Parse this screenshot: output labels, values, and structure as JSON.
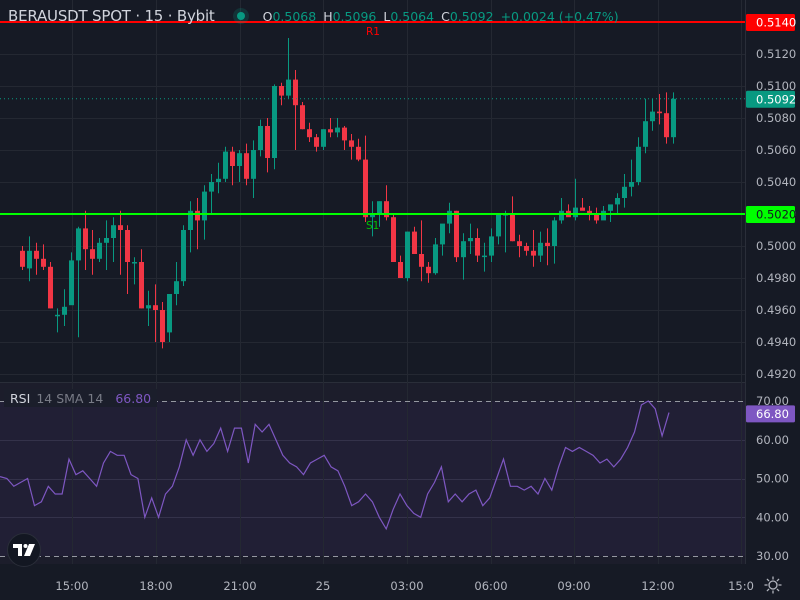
{
  "header": {
    "symbol": "BERAUSDT SPOT · 15 · Bybit",
    "status_dot_color": "#089981",
    "ohlc": {
      "o_label": "O",
      "o": "0.5068",
      "h_label": "H",
      "h": "0.5096",
      "l_label": "L",
      "l": "0.5064",
      "c_label": "C",
      "c": "0.5092",
      "change": "+0.0024 (+0.47%)"
    }
  },
  "rsi_legend": {
    "title": "RSI",
    "params": "14 SMA 14",
    "value": "66.80"
  },
  "colors": {
    "background": "#161a25",
    "grid": "#242832",
    "up": "#089981",
    "down": "#f23645",
    "resistance": "#ff0000",
    "support": "#00ff00",
    "rsi_line": "#7e57c2",
    "rsi_band": "#211f35"
  },
  "chart_data": [
    {
      "type": "candlestick",
      "title": "BERAUSDT SPOT · 15 · Bybit",
      "price_axis": {
        "ticks": [
          "0.5140",
          "0.5120",
          "0.5100",
          "0.5080",
          "0.5060",
          "0.5040",
          "0.5020",
          "0.5000",
          "0.4980",
          "0.4960",
          "0.4940",
          "0.4920"
        ],
        "range": [
          0.4915,
          0.5153
        ]
      },
      "time_axis": {
        "ticks": [
          "15:00",
          "18:00",
          "21:00",
          "25",
          "03:00",
          "06:00",
          "09:00",
          "12:00",
          "15:0"
        ]
      },
      "levels": [
        {
          "name": "R1",
          "price": 0.514,
          "label": "0.5140",
          "color": "#ff0000"
        },
        {
          "name": "S1",
          "price": 0.502,
          "label": "0.5020",
          "color": "#00ff00"
        }
      ],
      "last_price": {
        "price": 0.5092,
        "label": "0.5092",
        "color": "#089981"
      },
      "candles_ohlc": [
        [
          0.4997,
          0.5,
          0.4985,
          0.4987
        ],
        [
          0.4986,
          0.5006,
          0.4978,
          0.4997
        ],
        [
          0.4997,
          0.5002,
          0.4982,
          0.4992
        ],
        [
          0.4992,
          0.5001,
          0.4985,
          0.4987
        ],
        [
          0.4987,
          0.499,
          0.4961,
          0.4961
        ],
        [
          0.4957,
          0.4961,
          0.4946,
          0.4957
        ],
        [
          0.4957,
          0.4973,
          0.495,
          0.4962
        ],
        [
          0.4963,
          0.4996,
          0.4966,
          0.4991
        ],
        [
          0.4991,
          0.5012,
          0.4943,
          0.5011
        ],
        [
          0.5011,
          0.5022,
          0.4985,
          0.4998
        ],
        [
          0.4998,
          0.501,
          0.4982,
          0.4992
        ],
        [
          0.4992,
          0.5005,
          0.499,
          0.5002
        ],
        [
          0.5002,
          0.5016,
          0.4985,
          0.5005
        ],
        [
          0.5005,
          0.5018,
          0.499,
          0.5013
        ],
        [
          0.5013,
          0.5022,
          0.4982,
          0.501
        ],
        [
          0.501,
          0.5013,
          0.497,
          0.499
        ],
        [
          0.499,
          0.4993,
          0.4976,
          0.499
        ],
        [
          0.499,
          0.4998,
          0.4961,
          0.4961
        ],
        [
          0.4961,
          0.4972,
          0.495,
          0.4963
        ],
        [
          0.4963,
          0.4976,
          0.494,
          0.496
        ],
        [
          0.496,
          0.4965,
          0.4936,
          0.494
        ],
        [
          0.4946,
          0.497,
          0.494,
          0.497
        ],
        [
          0.497,
          0.499,
          0.4963,
          0.4978
        ],
        [
          0.4978,
          0.5013,
          0.4975,
          0.501
        ],
        [
          0.501,
          0.5028,
          0.4996,
          0.5022
        ],
        [
          0.5022,
          0.503,
          0.4998,
          0.5016
        ],
        [
          0.5016,
          0.5038,
          0.5004,
          0.5034
        ],
        [
          0.5034,
          0.5045,
          0.502,
          0.504
        ],
        [
          0.504,
          0.5052,
          0.5033,
          0.5042
        ],
        [
          0.5042,
          0.5062,
          0.504,
          0.5059
        ],
        [
          0.5059,
          0.5062,
          0.5038,
          0.505
        ],
        [
          0.505,
          0.506,
          0.504,
          0.5058
        ],
        [
          0.5058,
          0.5064,
          0.5038,
          0.5042
        ],
        [
          0.5042,
          0.5066,
          0.503,
          0.506
        ],
        [
          0.506,
          0.5079,
          0.5056,
          0.5075
        ],
        [
          0.5075,
          0.508,
          0.5046,
          0.5055
        ],
        [
          0.5055,
          0.5101,
          0.5048,
          0.51
        ],
        [
          0.51,
          0.5102,
          0.5088,
          0.5094
        ],
        [
          0.5094,
          0.513,
          0.5092,
          0.5104
        ],
        [
          0.5104,
          0.511,
          0.506,
          0.5088
        ],
        [
          0.5088,
          0.509,
          0.5073,
          0.5073
        ],
        [
          0.5073,
          0.5077,
          0.5065,
          0.5068
        ],
        [
          0.5068,
          0.507,
          0.5059,
          0.5062
        ],
        [
          0.5062,
          0.5073,
          0.506,
          0.5073
        ],
        [
          0.5073,
          0.508,
          0.5068,
          0.5071
        ],
        [
          0.5071,
          0.508,
          0.5068,
          0.5074
        ],
        [
          0.5074,
          0.5075,
          0.506,
          0.5066
        ],
        [
          0.5066,
          0.507,
          0.5054,
          0.5062
        ],
        [
          0.5062,
          0.5067,
          0.5053,
          0.5054
        ],
        [
          0.5054,
          0.5069,
          0.5015,
          0.5018
        ],
        [
          0.5018,
          0.5028,
          0.5006,
          0.502
        ],
        [
          0.502,
          0.5028,
          0.5012,
          0.5028
        ],
        [
          0.5028,
          0.5038,
          0.5016,
          0.5018
        ],
        [
          0.5018,
          0.502,
          0.4998,
          0.499
        ],
        [
          0.499,
          0.4994,
          0.498,
          0.498
        ],
        [
          0.498,
          0.5009,
          0.4978,
          0.5009
        ],
        [
          0.5009,
          0.5012,
          0.4995,
          0.4995
        ],
        [
          0.4995,
          0.5016,
          0.4978,
          0.4987
        ],
        [
          0.4987,
          0.499,
          0.4977,
          0.4983
        ],
        [
          0.4983,
          0.5005,
          0.4982,
          0.5001
        ],
        [
          0.5001,
          0.501,
          0.4994,
          0.5014
        ],
        [
          0.5014,
          0.5027,
          0.5008,
          0.5022
        ],
        [
          0.5022,
          0.5022,
          0.499,
          0.4993
        ],
        [
          0.4993,
          0.5008,
          0.4979,
          0.5003
        ],
        [
          0.5003,
          0.5014,
          0.4995,
          0.5005
        ],
        [
          0.5005,
          0.5011,
          0.499,
          0.4994
        ],
        [
          0.4994,
          0.5002,
          0.4984,
          0.4994
        ],
        [
          0.4994,
          0.5011,
          0.499,
          0.5006
        ],
        [
          0.5006,
          0.5018,
          0.5001,
          0.502
        ],
        [
          0.502,
          0.5022,
          0.4996,
          0.502
        ],
        [
          0.502,
          0.5031,
          0.5003,
          0.5003
        ],
        [
          0.5003,
          0.5007,
          0.4993,
          0.5
        ],
        [
          0.5,
          0.5002,
          0.4994,
          0.4997
        ],
        [
          0.4997,
          0.501,
          0.4987,
          0.4994
        ],
        [
          0.4994,
          0.5009,
          0.499,
          0.5002
        ],
        [
          0.5002,
          0.5011,
          0.4988,
          0.5
        ],
        [
          0.5,
          0.5018,
          0.4989,
          0.5016
        ],
        [
          0.5016,
          0.503,
          0.5014,
          0.5022
        ],
        [
          0.5022,
          0.5026,
          0.5019,
          0.5018
        ],
        [
          0.5018,
          0.5042,
          0.5016,
          0.5024
        ],
        [
          0.5024,
          0.503,
          0.5023,
          0.5022
        ],
        [
          0.5022,
          0.5025,
          0.5016,
          0.502
        ],
        [
          0.502,
          0.5024,
          0.5014,
          0.5016
        ],
        [
          0.5016,
          0.5025,
          0.5018,
          0.5022
        ],
        [
          0.5022,
          0.5025,
          0.5015,
          0.5026
        ],
        [
          0.5026,
          0.5033,
          0.502,
          0.503
        ],
        [
          0.503,
          0.5045,
          0.5024,
          0.5037
        ],
        [
          0.5037,
          0.5054,
          0.5031,
          0.504
        ],
        [
          0.504,
          0.5068,
          0.5038,
          0.5062
        ],
        [
          0.5062,
          0.5092,
          0.5058,
          0.5078
        ],
        [
          0.5078,
          0.5092,
          0.5072,
          0.5084
        ],
        [
          0.5084,
          0.5095,
          0.5076,
          0.5083
        ],
        [
          0.5083,
          0.5096,
          0.5064,
          0.5068
        ],
        [
          0.5068,
          0.5096,
          0.5064,
          0.5092
        ]
      ]
    },
    {
      "type": "line",
      "title": "RSI 14 SMA 14",
      "y_axis": {
        "ticks": [
          "70.00",
          "60.00",
          "50.00",
          "40.00",
          "30.00"
        ],
        "range": [
          30,
          70
        ],
        "bands": [
          70,
          30
        ]
      },
      "current_value": 66.8,
      "values": [
        50.5,
        50,
        48,
        49,
        50,
        43,
        44,
        48,
        46,
        46,
        55,
        51,
        52,
        50,
        48,
        54,
        57,
        56,
        56,
        51,
        50,
        40,
        45,
        40,
        46,
        48,
        53,
        60,
        56,
        60,
        57,
        59,
        63,
        57,
        63,
        63,
        54,
        64,
        62,
        64,
        60,
        56,
        54,
        53,
        51,
        54,
        55,
        56,
        53,
        52,
        48,
        43,
        44,
        46,
        44,
        40,
        37,
        42,
        46,
        43,
        41,
        40,
        46,
        49,
        53,
        44,
        46,
        44,
        46,
        47,
        43,
        45,
        50,
        55,
        48,
        48,
        47,
        48,
        46,
        50,
        47,
        53,
        58,
        57,
        58,
        57,
        56,
        54,
        55,
        53,
        55,
        58,
        62,
        69,
        70,
        68,
        61,
        67
      ],
      "xlabel": "",
      "ylabel": "RSI"
    }
  ],
  "axis_labels": {
    "price": [
      "0.5140",
      "0.5120",
      "0.5100",
      "0.5080",
      "0.5060",
      "0.5040",
      "0.5020",
      "0.5000",
      "0.4980",
      "0.4960",
      "0.4940",
      "0.4920"
    ],
    "rsi": [
      "70.00",
      "60.00",
      "50.00",
      "40.00",
      "30.00"
    ],
    "time": [
      "15:00",
      "18:00",
      "21:00",
      "25",
      "03:00",
      "06:00",
      "09:00",
      "12:00",
      "15:0"
    ]
  },
  "level_labels": {
    "r1": "R1",
    "s1": "S1"
  },
  "price_tags": {
    "r1": "0.5140",
    "last": "0.5092",
    "s1": "0.5020",
    "rsi": "66.80"
  },
  "icons": {
    "logo": "tradingview-logo-icon",
    "settings": "settings-sun-icon"
  }
}
